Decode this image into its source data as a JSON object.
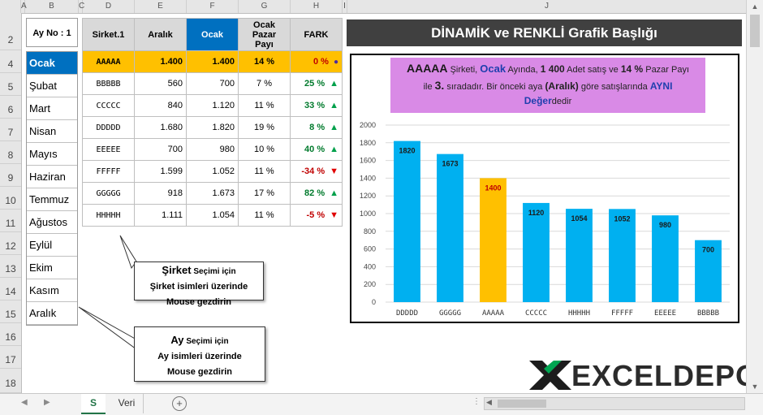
{
  "columns": [
    "A",
    "B",
    "C",
    "D",
    "E",
    "F",
    "G",
    "H",
    "I",
    "J"
  ],
  "rows": [
    "2",
    "4",
    "5",
    "6",
    "7",
    "8",
    "9",
    "10",
    "11",
    "12",
    "13",
    "14",
    "15",
    "16",
    "17",
    "18"
  ],
  "ay_no_label": "Ay No : 1",
  "months": [
    "Ocak",
    "Şubat",
    "Mart",
    "Nisan",
    "Mayıs",
    "Haziran",
    "Temmuz",
    "Ağustos",
    "Eylül",
    "Ekim",
    "Kasım",
    "Aralık"
  ],
  "table": {
    "headers": {
      "sirket": "Sirket.1",
      "aralik": "Aralık",
      "ocak": "Ocak",
      "pazar_line1": "Ocak",
      "pazar_line2": "Pazar Payı",
      "fark": "FARK"
    },
    "rows": [
      {
        "sirket": "AAAAA",
        "aralik": "1.400",
        "ocak": "1.400",
        "pay": "14 %",
        "fark": "0 %",
        "dir": "eq"
      },
      {
        "sirket": "BBBBB",
        "aralik": "560",
        "ocak": "700",
        "pay": "7 %",
        "fark": "25 %",
        "dir": "up"
      },
      {
        "sirket": "CCCCC",
        "aralik": "840",
        "ocak": "1.120",
        "pay": "11 %",
        "fark": "33 %",
        "dir": "up"
      },
      {
        "sirket": "DDDDD",
        "aralik": "1.680",
        "ocak": "1.820",
        "pay": "19 %",
        "fark": "8 %",
        "dir": "up"
      },
      {
        "sirket": "EEEEE",
        "aralik": "700",
        "ocak": "980",
        "pay": "10 %",
        "fark": "40 %",
        "dir": "up"
      },
      {
        "sirket": "FFFFF",
        "aralik": "1.599",
        "ocak": "1.052",
        "pay": "11 %",
        "fark": "-34 %",
        "dir": "down"
      },
      {
        "sirket": "GGGGG",
        "aralik": "918",
        "ocak": "1.673",
        "pay": "17 %",
        "fark": "82 %",
        "dir": "up"
      },
      {
        "sirket": "HHHHH",
        "aralik": "1.111",
        "ocak": "1.054",
        "pay": "11 %",
        "fark": "-5 %",
        "dir": "down"
      }
    ]
  },
  "banner_title": "DİNAMİK ve RENKLİ  Grafik Başlığı",
  "summary": {
    "company": "AAAAA",
    "t1": " Şirketi, ",
    "month": "Ocak",
    "t2": " Ayında, ",
    "sales": "1 400",
    "t3": " Adet satış ve ",
    "share": "14 %",
    "t4": " Pazar Payı",
    "t5": "ile ",
    "rank": "3.",
    "t6": " sıradadır. Bir önceki aya ",
    "prev": "(Aralık)",
    "t7": " göre satışlarında ",
    "change1": "AYNI",
    "change2": "Değer",
    "t8": "dedir"
  },
  "callouts": {
    "sirket": {
      "kw1": "Şirket",
      "tail1": " Seçimi  için",
      "kw2": "Şirket",
      "tail2": " isimleri üzerinde",
      "line3": "Mouse gezdirin"
    },
    "ay": {
      "kw1": "Ay",
      "tail1": " Seçimi  için",
      "line2": "Ay isimleri üzerinde",
      "line3": "Mouse gezdirin"
    }
  },
  "tabs": {
    "active": "S",
    "other": "Veri"
  },
  "watermark": "EXCELDEPO",
  "colors": {
    "highlight": "#ffc000",
    "bar": "#00b0f0",
    "selected_header": "#0070c0",
    "summary_bg": "#d98ae6",
    "banner_bg": "#404040"
  },
  "chart_data": {
    "type": "bar",
    "categories": [
      "DDDDD",
      "GGGGG",
      "AAAAA",
      "CCCCC",
      "HHHHH",
      "FFFFF",
      "EEEEE",
      "BBBBB"
    ],
    "values": [
      1820,
      1673,
      1400,
      1120,
      1054,
      1052,
      980,
      700
    ],
    "highlight_index": 2,
    "ylim": [
      0,
      2000
    ],
    "yticks": [
      0,
      200,
      400,
      600,
      800,
      1000,
      1200,
      1400,
      1600,
      1800,
      2000
    ],
    "grid": true,
    "title": "",
    "xlabel": "",
    "ylabel": ""
  }
}
